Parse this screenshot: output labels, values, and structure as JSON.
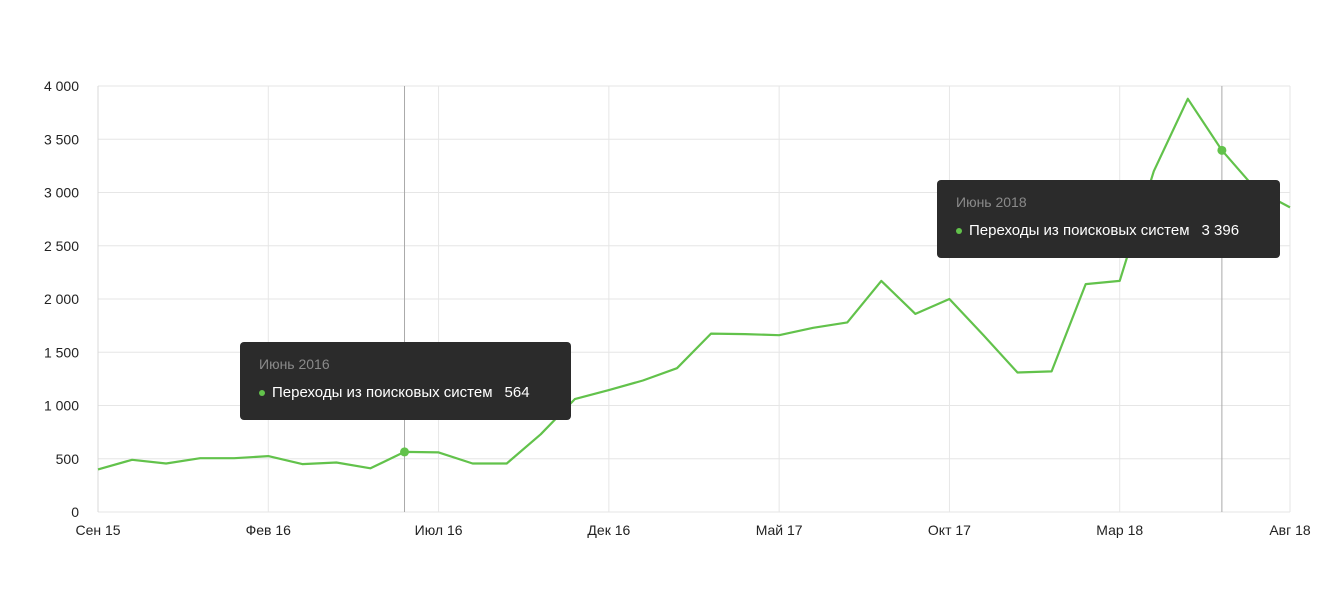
{
  "chart_data": {
    "type": "line",
    "title": "",
    "xlabel": "",
    "ylabel": "",
    "ylim": [
      0,
      4000
    ],
    "yticks": [
      {
        "value": 0,
        "label": "0"
      },
      {
        "value": 500,
        "label": "500"
      },
      {
        "value": 1000,
        "label": "1 000"
      },
      {
        "value": 1500,
        "label": "1 500"
      },
      {
        "value": 2000,
        "label": "2 000"
      },
      {
        "value": 2500,
        "label": "2 500"
      },
      {
        "value": 3000,
        "label": "3 000"
      },
      {
        "value": 3500,
        "label": "3 500"
      },
      {
        "value": 4000,
        "label": "4 000"
      }
    ],
    "xticks": [
      {
        "index": 0,
        "label": "Сен 15"
      },
      {
        "index": 5,
        "label": "Фев 16"
      },
      {
        "index": 10,
        "label": "Июл 16"
      },
      {
        "index": 15,
        "label": "Дек 16"
      },
      {
        "index": 20,
        "label": "Май 17"
      },
      {
        "index": 25,
        "label": "Окт 17"
      },
      {
        "index": 30,
        "label": "Мар 18"
      },
      {
        "index": 35,
        "label": "Авг 18"
      }
    ],
    "x": [
      "2015-09",
      "2015-10",
      "2015-11",
      "2015-12",
      "2016-01",
      "2016-02",
      "2016-03",
      "2016-04",
      "2016-05",
      "2016-06",
      "2016-07",
      "2016-08",
      "2016-09",
      "2016-10",
      "2016-11",
      "2016-12",
      "2017-01",
      "2017-02",
      "2017-03",
      "2017-04",
      "2017-05",
      "2017-06",
      "2017-07",
      "2017-08",
      "2017-09",
      "2017-10",
      "2017-11",
      "2017-12",
      "2018-01",
      "2018-02",
      "2018-03",
      "2018-04",
      "2018-05",
      "2018-06",
      "2018-07",
      "2018-08"
    ],
    "series": [
      {
        "name": "Переходы из поисковых систем",
        "color": "#62c24b",
        "values": [
          400,
          490,
          455,
          505,
          505,
          525,
          450,
          465,
          410,
          564,
          560,
          455,
          455,
          730,
          1060,
          1145,
          1235,
          1350,
          1675,
          1670,
          1660,
          1730,
          1780,
          2170,
          1860,
          2000,
          1660,
          1310,
          1320,
          2140,
          2170,
          3200,
          3880,
          3396,
          3030,
          2860
        ]
      }
    ],
    "grid": true,
    "legend": "none",
    "highlight_indices": [
      9,
      33
    ]
  },
  "tooltips": [
    {
      "date": "Июнь 2016",
      "series_name": "Переходы из поисковых систем",
      "value": "564"
    },
    {
      "date": "Июнь 2018",
      "series_name": "Переходы из поисковых систем",
      "value": "3 396"
    }
  ]
}
